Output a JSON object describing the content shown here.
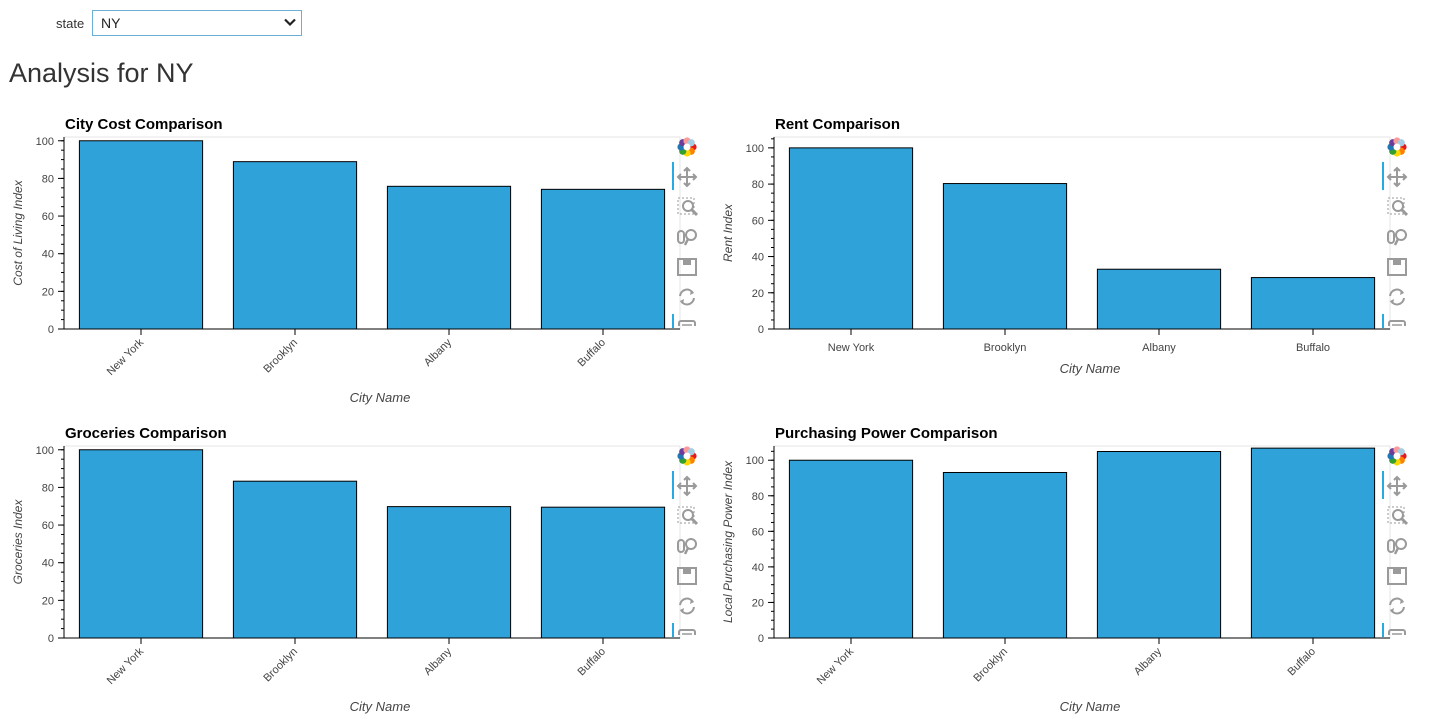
{
  "filter": {
    "label": "state",
    "value": "NY"
  },
  "page": {
    "heading": "Analysis for NY"
  },
  "toolbar": [
    "bokeh-logo-icon",
    "pan-icon",
    "box-zoom-icon",
    "wheel-zoom-icon",
    "save-icon",
    "reset-icon",
    "hover-icon"
  ],
  "colors": {
    "bar": "#30a2da",
    "bar_stroke": "#000000",
    "frame": "#e5e5e5"
  },
  "chart_data": [
    {
      "id": "cost",
      "type": "bar",
      "title": "City Cost Comparison",
      "categories": [
        "New York",
        "Brooklyn",
        "Albany",
        "Buffalo"
      ],
      "values": [
        100,
        88.9,
        75.8,
        74.2
      ],
      "xlabel": "City Name",
      "ylabel": "Cost of Living Index",
      "ylim": [
        0,
        102
      ],
      "yticks": [
        0,
        20,
        40,
        60,
        80,
        100
      ],
      "rotated_labels": true
    },
    {
      "id": "rent",
      "type": "bar",
      "title": "Rent Comparison",
      "categories": [
        "New York",
        "Brooklyn",
        "Albany",
        "Buffalo"
      ],
      "values": [
        100,
        80.3,
        33.0,
        28.4
      ],
      "xlabel": "City Name",
      "ylabel": "Rent Index",
      "ylim": [
        0,
        106
      ],
      "yticks": [
        0,
        20,
        40,
        60,
        80,
        100
      ],
      "rotated_labels": false
    },
    {
      "id": "groceries",
      "type": "bar",
      "title": "Groceries Comparison",
      "categories": [
        "New York",
        "Brooklyn",
        "Albany",
        "Buffalo"
      ],
      "values": [
        100,
        83.3,
        69.8,
        69.5
      ],
      "xlabel": "City Name",
      "ylabel": "Groceries Index",
      "ylim": [
        0,
        102
      ],
      "yticks": [
        0,
        20,
        40,
        60,
        80,
        100
      ],
      "rotated_labels": true
    },
    {
      "id": "purchasing",
      "type": "bar",
      "title": "Purchasing Power Comparison",
      "categories": [
        "New York",
        "Brooklyn",
        "Albany",
        "Buffalo"
      ],
      "values": [
        100,
        93.1,
        104.9,
        106.8
      ],
      "xlabel": "City Name",
      "ylabel": "Local Purchasing Power Index",
      "ylim": [
        0,
        108
      ],
      "yticks": [
        0,
        20,
        40,
        60,
        80,
        100
      ],
      "rotated_labels": true
    }
  ]
}
